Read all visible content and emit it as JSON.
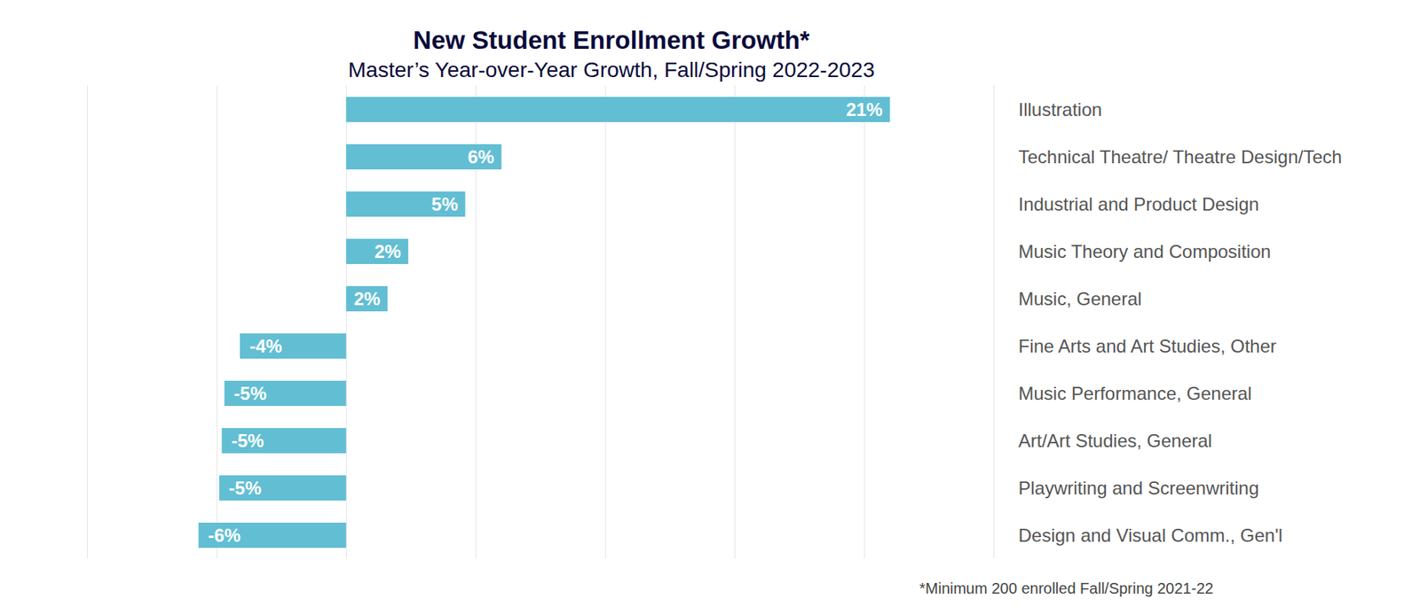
{
  "chart_data": {
    "type": "bar",
    "orientation": "horizontal",
    "title": "New Student Enrollment Growth*",
    "subtitle": "Master’s Year-over-Year Growth, Fall/Spring 2022-2023",
    "caption": "*Minimum 200 enrolled Fall/Spring 2021-22",
    "categories": [
      "Illustration",
      "Technical Theatre/ Theatre Design/Tech",
      "Industrial and Product Design",
      "Music Theory and Composition",
      "Music, General",
      "Fine Arts and Art Studies, Other",
      "Music Performance, General",
      "Art/Art Studies, General",
      "Playwriting and Screenwriting",
      "Design and Visual Comm., Gen'l"
    ],
    "values": [
      21,
      6,
      4.6,
      2.4,
      1.6,
      -4.1,
      -4.7,
      -4.8,
      -4.9,
      -5.7
    ],
    "value_labels": [
      "21%",
      "6%",
      "5%",
      "2%",
      "2%",
      "-4%",
      "-5%",
      "-5%",
      "-5%",
      "-6%"
    ],
    "color": "#62bed3",
    "xlim": [
      -10,
      25
    ],
    "xticks": [
      -10,
      -5,
      0,
      5,
      10,
      15,
      20,
      25
    ],
    "grid": true,
    "data_labels": true,
    "tick_labels": "y"
  }
}
